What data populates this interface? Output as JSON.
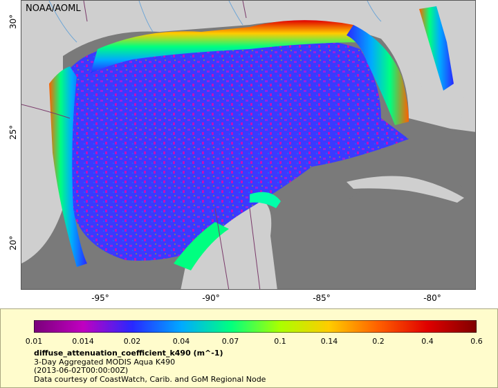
{
  "map": {
    "credit": "NOAA/AOML",
    "lat_labels": [
      "30°",
      "25°",
      "20°"
    ],
    "lon_labels": [
      "-95°",
      "-90°",
      "-85°",
      "-80°"
    ],
    "colors": {
      "land": "#cfcfcf",
      "no_data": "#7a7a7a",
      "borders": "#7a3a6a",
      "rivers": "#6fa6d6"
    }
  },
  "legend": {
    "ticks": [
      "0.01",
      "0.014",
      "0.02",
      "0.04",
      "0.07",
      "0.1",
      "0.14",
      "0.2",
      "0.4",
      "0.6"
    ],
    "colorbar_colors": [
      "#7a007a",
      "#c000c0",
      "#2828ff",
      "#00aaff",
      "#00ff80",
      "#aaff00",
      "#ffcc00",
      "#ff6000",
      "#e00000",
      "#800000"
    ],
    "title": "diffuse_attenuation_coefficient_k490 (m^-1)",
    "line1": "3-Day Aggregated MODIS Aqua K490",
    "line2": "(2013-06-02T00:00:00Z)",
    "line3": "Data courtesy of CoastWatch, Carib. and GoM Regional Node"
  }
}
